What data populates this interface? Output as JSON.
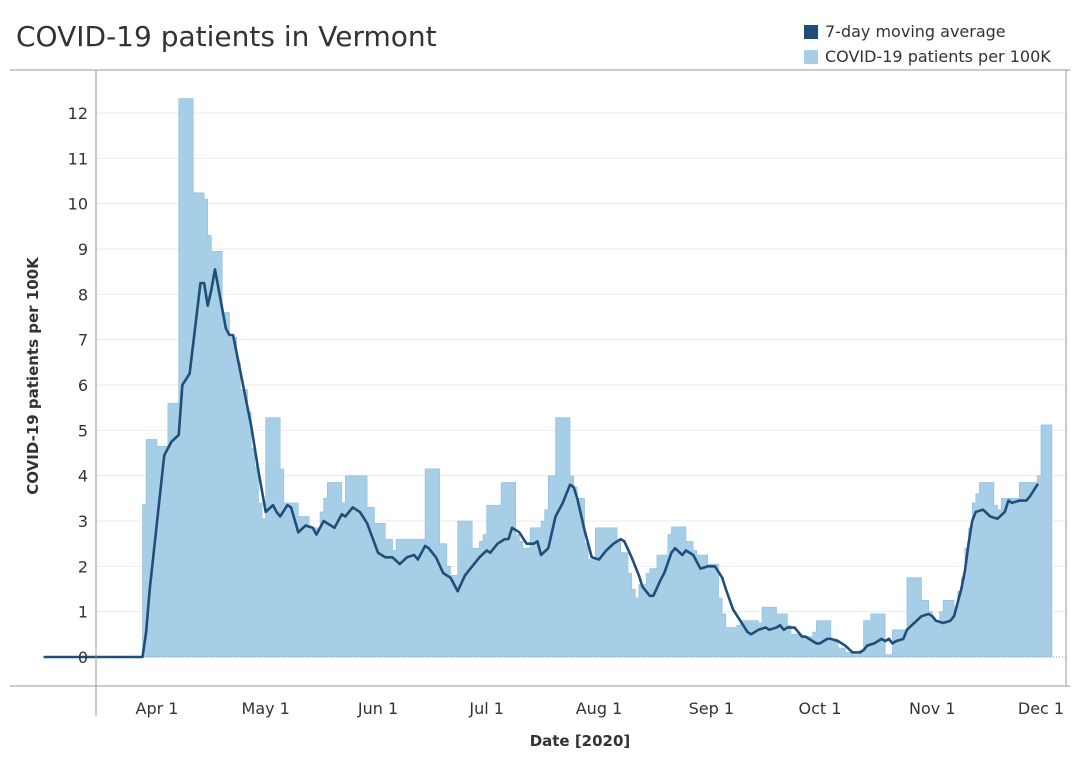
{
  "chart_data": {
    "type": "bar+line",
    "title": "COVID-19 patients in Vermont",
    "xlabel": "Date [2020]",
    "ylabel": "COVID-19 patients per 100K",
    "ylim": [
      0,
      12.8
    ],
    "yticks": [
      0,
      1,
      2,
      3,
      4,
      5,
      6,
      7,
      8,
      9,
      10,
      11,
      12
    ],
    "xlim": [
      "2020-03-01",
      "2020-12-04"
    ],
    "xticks": [
      {
        "date": "2020-04-01",
        "label": "Apr 1"
      },
      {
        "date": "2020-05-01",
        "label": "May 1"
      },
      {
        "date": "2020-06-01",
        "label": "Jun 1"
      },
      {
        "date": "2020-07-01",
        "label": "Jul 1"
      },
      {
        "date": "2020-08-01",
        "label": "Aug 1"
      },
      {
        "date": "2020-09-01",
        "label": "Sep 1"
      },
      {
        "date": "2020-10-01",
        "label": "Oct 1"
      },
      {
        "date": "2020-11-01",
        "label": "Nov 1"
      },
      {
        "date": "2020-12-01",
        "label": "Dec 1"
      }
    ],
    "grid": "horizontal",
    "legend_position": "top-right",
    "legend": [
      {
        "label": "7-day moving average",
        "color": "#1f4e79"
      },
      {
        "label": "COVID-19 patients per 100K",
        "color": "#a6cee6"
      }
    ],
    "series": [
      {
        "name": "COVID-19 patients per 100K",
        "type": "area-step",
        "color": "#a6cee6",
        "points": [
          [
            "2020-03-01",
            0
          ],
          [
            "2020-03-27",
            0
          ],
          [
            "2020-03-28",
            3.36
          ],
          [
            "2020-03-29",
            4.8
          ],
          [
            "2020-04-01",
            4.65
          ],
          [
            "2020-04-04",
            5.6
          ],
          [
            "2020-04-07",
            12.32
          ],
          [
            "2020-04-11",
            10.24
          ],
          [
            "2020-04-14",
            10.1
          ],
          [
            "2020-04-15",
            9.3
          ],
          [
            "2020-04-16",
            8.95
          ],
          [
            "2020-04-19",
            7.6
          ],
          [
            "2020-04-21",
            7.05
          ],
          [
            "2020-04-23",
            6.5
          ],
          [
            "2020-04-24",
            5.9
          ],
          [
            "2020-04-26",
            5.4
          ],
          [
            "2020-04-27",
            4.6
          ],
          [
            "2020-04-28",
            4.2
          ],
          [
            "2020-04-29",
            3.4
          ],
          [
            "2020-04-30",
            3.05
          ],
          [
            "2020-05-01",
            5.28
          ],
          [
            "2020-05-05",
            4.15
          ],
          [
            "2020-05-06",
            3.4
          ],
          [
            "2020-05-10",
            3.1
          ],
          [
            "2020-05-13",
            2.85
          ],
          [
            "2020-05-16",
            3.2
          ],
          [
            "2020-05-17",
            3.5
          ],
          [
            "2020-05-18",
            3.85
          ],
          [
            "2020-05-22",
            3.4
          ],
          [
            "2020-05-23",
            4.0
          ],
          [
            "2020-05-29",
            3.3
          ],
          [
            "2020-05-31",
            2.95
          ],
          [
            "2020-06-03",
            2.6
          ],
          [
            "2020-06-05",
            2.35
          ],
          [
            "2020-06-06",
            2.6
          ],
          [
            "2020-06-14",
            4.15
          ],
          [
            "2020-06-18",
            2.5
          ],
          [
            "2020-06-20",
            2.0
          ],
          [
            "2020-06-21",
            1.8
          ],
          [
            "2020-06-23",
            3.0
          ],
          [
            "2020-06-27",
            2.4
          ],
          [
            "2020-06-29",
            2.55
          ],
          [
            "2020-06-30",
            2.7
          ],
          [
            "2020-07-01",
            3.35
          ],
          [
            "2020-07-05",
            3.85
          ],
          [
            "2020-07-09",
            2.7
          ],
          [
            "2020-07-10",
            2.55
          ],
          [
            "2020-07-11",
            2.4
          ],
          [
            "2020-07-13",
            2.85
          ],
          [
            "2020-07-16",
            3.0
          ],
          [
            "2020-07-17",
            3.25
          ],
          [
            "2020-07-18",
            4.0
          ],
          [
            "2020-07-20",
            5.28
          ],
          [
            "2020-07-24",
            4.0
          ],
          [
            "2020-07-25",
            3.75
          ],
          [
            "2020-07-26",
            3.5
          ],
          [
            "2020-07-28",
            2.5
          ],
          [
            "2020-07-29",
            2.15
          ],
          [
            "2020-07-31",
            2.85
          ],
          [
            "2020-08-06",
            2.55
          ],
          [
            "2020-08-07",
            2.3
          ],
          [
            "2020-08-09",
            1.85
          ],
          [
            "2020-08-10",
            1.5
          ],
          [
            "2020-08-11",
            1.3
          ],
          [
            "2020-08-12",
            1.6
          ],
          [
            "2020-08-14",
            1.85
          ],
          [
            "2020-08-15",
            1.95
          ],
          [
            "2020-08-17",
            2.25
          ],
          [
            "2020-08-20",
            2.7
          ],
          [
            "2020-08-21",
            2.87
          ],
          [
            "2020-08-25",
            2.55
          ],
          [
            "2020-08-27",
            2.35
          ],
          [
            "2020-08-28",
            2.25
          ],
          [
            "2020-08-31",
            2.05
          ],
          [
            "2020-09-03",
            1.3
          ],
          [
            "2020-09-04",
            0.95
          ],
          [
            "2020-09-05",
            0.65
          ],
          [
            "2020-09-08",
            0.7
          ],
          [
            "2020-09-09",
            0.8
          ],
          [
            "2020-09-14",
            0.75
          ],
          [
            "2020-09-15",
            1.1
          ],
          [
            "2020-09-19",
            0.95
          ],
          [
            "2020-09-22",
            0.7
          ],
          [
            "2020-09-23",
            0.5
          ],
          [
            "2020-09-26",
            0.45
          ],
          [
            "2020-09-29",
            0.55
          ],
          [
            "2020-09-30",
            0.8
          ],
          [
            "2020-10-04",
            0.4
          ],
          [
            "2020-10-06",
            0.2
          ],
          [
            "2020-10-08",
            0.1
          ],
          [
            "2020-10-10",
            0.05
          ],
          [
            "2020-10-12",
            0.15
          ],
          [
            "2020-10-13",
            0.8
          ],
          [
            "2020-10-15",
            0.95
          ],
          [
            "2020-10-19",
            0.05
          ],
          [
            "2020-10-21",
            0.6
          ],
          [
            "2020-10-25",
            1.75
          ],
          [
            "2020-10-29",
            1.25
          ],
          [
            "2020-10-31",
            1.0
          ],
          [
            "2020-11-01",
            0.85
          ],
          [
            "2020-11-02",
            0.8
          ],
          [
            "2020-11-03",
            1.0
          ],
          [
            "2020-11-04",
            1.25
          ],
          [
            "2020-11-07",
            1.1
          ],
          [
            "2020-11-08",
            1.45
          ],
          [
            "2020-11-09",
            1.75
          ],
          [
            "2020-11-10",
            2.4
          ],
          [
            "2020-11-11",
            2.85
          ],
          [
            "2020-11-12",
            3.4
          ],
          [
            "2020-11-13",
            3.6
          ],
          [
            "2020-11-14",
            3.85
          ],
          [
            "2020-11-18",
            3.35
          ],
          [
            "2020-11-19",
            3.25
          ],
          [
            "2020-11-20",
            3.5
          ],
          [
            "2020-11-25",
            3.85
          ],
          [
            "2020-11-30",
            4.0
          ],
          [
            "2020-12-01",
            5.12
          ],
          [
            "2020-12-04",
            5.12
          ]
        ]
      },
      {
        "name": "7-day moving average",
        "type": "line",
        "color": "#1f4e79",
        "points": [
          [
            "2020-03-01",
            0
          ],
          [
            "2020-03-28",
            0
          ],
          [
            "2020-03-29",
            0.55
          ],
          [
            "2020-03-30",
            1.5
          ],
          [
            "2020-04-03",
            4.45
          ],
          [
            "2020-04-05",
            4.75
          ],
          [
            "2020-04-07",
            4.9
          ],
          [
            "2020-04-08",
            6.0
          ],
          [
            "2020-04-10",
            6.25
          ],
          [
            "2020-04-13",
            8.25
          ],
          [
            "2020-04-14",
            8.25
          ],
          [
            "2020-04-15",
            7.75
          ],
          [
            "2020-04-16",
            8.1
          ],
          [
            "2020-04-17",
            8.55
          ],
          [
            "2020-04-20",
            7.25
          ],
          [
            "2020-04-21",
            7.1
          ],
          [
            "2020-04-22",
            7.1
          ],
          [
            "2020-04-24",
            6.3
          ],
          [
            "2020-04-26",
            5.5
          ],
          [
            "2020-04-27",
            5.1
          ],
          [
            "2020-04-29",
            4.1
          ],
          [
            "2020-05-01",
            3.2
          ],
          [
            "2020-05-03",
            3.35
          ],
          [
            "2020-05-04",
            3.2
          ],
          [
            "2020-05-05",
            3.1
          ],
          [
            "2020-05-07",
            3.35
          ],
          [
            "2020-05-08",
            3.3
          ],
          [
            "2020-05-10",
            2.75
          ],
          [
            "2020-05-12",
            2.9
          ],
          [
            "2020-05-14",
            2.85
          ],
          [
            "2020-05-15",
            2.7
          ],
          [
            "2020-05-17",
            3.0
          ],
          [
            "2020-05-20",
            2.85
          ],
          [
            "2020-05-22",
            3.15
          ],
          [
            "2020-05-23",
            3.1
          ],
          [
            "2020-05-25",
            3.3
          ],
          [
            "2020-05-27",
            3.2
          ],
          [
            "2020-05-29",
            2.95
          ],
          [
            "2020-06-01",
            2.3
          ],
          [
            "2020-06-03",
            2.2
          ],
          [
            "2020-06-05",
            2.2
          ],
          [
            "2020-06-07",
            2.05
          ],
          [
            "2020-06-09",
            2.2
          ],
          [
            "2020-06-11",
            2.25
          ],
          [
            "2020-06-12",
            2.15
          ],
          [
            "2020-06-14",
            2.45
          ],
          [
            "2020-06-15",
            2.4
          ],
          [
            "2020-06-17",
            2.2
          ],
          [
            "2020-06-19",
            1.85
          ],
          [
            "2020-06-21",
            1.75
          ],
          [
            "2020-06-23",
            1.45
          ],
          [
            "2020-06-25",
            1.8
          ],
          [
            "2020-06-27",
            2.0
          ],
          [
            "2020-06-29",
            2.2
          ],
          [
            "2020-07-01",
            2.35
          ],
          [
            "2020-07-02",
            2.3
          ],
          [
            "2020-07-04",
            2.5
          ],
          [
            "2020-07-06",
            2.6
          ],
          [
            "2020-07-07",
            2.6
          ],
          [
            "2020-07-08",
            2.85
          ],
          [
            "2020-07-10",
            2.75
          ],
          [
            "2020-07-12",
            2.5
          ],
          [
            "2020-07-14",
            2.5
          ],
          [
            "2020-07-15",
            2.55
          ],
          [
            "2020-07-16",
            2.25
          ],
          [
            "2020-07-18",
            2.4
          ],
          [
            "2020-07-20",
            3.1
          ],
          [
            "2020-07-22",
            3.4
          ],
          [
            "2020-07-24",
            3.8
          ],
          [
            "2020-07-25",
            3.75
          ],
          [
            "2020-07-26",
            3.5
          ],
          [
            "2020-07-28",
            2.8
          ],
          [
            "2020-07-30",
            2.2
          ],
          [
            "2020-08-01",
            2.15
          ],
          [
            "2020-08-03",
            2.35
          ],
          [
            "2020-08-05",
            2.5
          ],
          [
            "2020-08-07",
            2.6
          ],
          [
            "2020-08-08",
            2.55
          ],
          [
            "2020-08-10",
            2.2
          ],
          [
            "2020-08-12",
            1.8
          ],
          [
            "2020-08-13",
            1.55
          ],
          [
            "2020-08-15",
            1.35
          ],
          [
            "2020-08-16",
            1.35
          ],
          [
            "2020-08-18",
            1.7
          ],
          [
            "2020-08-19",
            1.85
          ],
          [
            "2020-08-21",
            2.3
          ],
          [
            "2020-08-22",
            2.4
          ],
          [
            "2020-08-24",
            2.25
          ],
          [
            "2020-08-25",
            2.35
          ],
          [
            "2020-08-27",
            2.25
          ],
          [
            "2020-08-29",
            1.95
          ],
          [
            "2020-08-31",
            2.0
          ],
          [
            "2020-09-02",
            2.0
          ],
          [
            "2020-09-04",
            1.75
          ],
          [
            "2020-09-05",
            1.5
          ],
          [
            "2020-09-07",
            1.05
          ],
          [
            "2020-09-09",
            0.8
          ],
          [
            "2020-09-11",
            0.55
          ],
          [
            "2020-09-12",
            0.5
          ],
          [
            "2020-09-14",
            0.6
          ],
          [
            "2020-09-16",
            0.65
          ],
          [
            "2020-09-17",
            0.6
          ],
          [
            "2020-09-19",
            0.65
          ],
          [
            "2020-09-20",
            0.7
          ],
          [
            "2020-09-21",
            0.6
          ],
          [
            "2020-09-22",
            0.65
          ],
          [
            "2020-09-24",
            0.65
          ],
          [
            "2020-09-26",
            0.45
          ],
          [
            "2020-09-27",
            0.45
          ],
          [
            "2020-09-29",
            0.35
          ],
          [
            "2020-09-30",
            0.3
          ],
          [
            "2020-10-01",
            0.3
          ],
          [
            "2020-10-03",
            0.4
          ],
          [
            "2020-10-04",
            0.4
          ],
          [
            "2020-10-06",
            0.35
          ],
          [
            "2020-10-08",
            0.25
          ],
          [
            "2020-10-10",
            0.1
          ],
          [
            "2020-10-12",
            0.1
          ],
          [
            "2020-10-13",
            0.15
          ],
          [
            "2020-10-14",
            0.25
          ],
          [
            "2020-10-16",
            0.3
          ],
          [
            "2020-10-18",
            0.4
          ],
          [
            "2020-10-19",
            0.35
          ],
          [
            "2020-10-20",
            0.4
          ],
          [
            "2020-10-21",
            0.3
          ],
          [
            "2020-10-22",
            0.35
          ],
          [
            "2020-10-24",
            0.4
          ],
          [
            "2020-10-25",
            0.6
          ],
          [
            "2020-10-27",
            0.75
          ],
          [
            "2020-10-29",
            0.9
          ],
          [
            "2020-10-31",
            0.95
          ],
          [
            "2020-11-01",
            0.9
          ],
          [
            "2020-11-02",
            0.8
          ],
          [
            "2020-11-04",
            0.75
          ],
          [
            "2020-11-06",
            0.8
          ],
          [
            "2020-11-07",
            0.9
          ],
          [
            "2020-11-08",
            1.2
          ],
          [
            "2020-11-09",
            1.5
          ],
          [
            "2020-11-10",
            1.9
          ],
          [
            "2020-11-11",
            2.5
          ],
          [
            "2020-11-12",
            3.0
          ],
          [
            "2020-11-13",
            3.2
          ],
          [
            "2020-11-15",
            3.25
          ],
          [
            "2020-11-17",
            3.1
          ],
          [
            "2020-11-19",
            3.05
          ],
          [
            "2020-11-21",
            3.2
          ],
          [
            "2020-11-22",
            3.45
          ],
          [
            "2020-11-23",
            3.4
          ],
          [
            "2020-11-25",
            3.45
          ],
          [
            "2020-11-27",
            3.45
          ],
          [
            "2020-11-28",
            3.55
          ],
          [
            "2020-11-30",
            3.8
          ]
        ]
      }
    ]
  }
}
